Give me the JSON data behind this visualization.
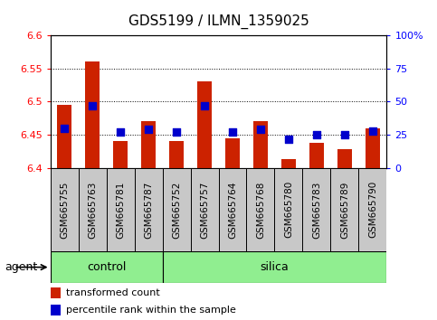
{
  "title": "GDS5199 / ILMN_1359025",
  "samples": [
    "GSM665755",
    "GSM665763",
    "GSM665781",
    "GSM665787",
    "GSM665752",
    "GSM665757",
    "GSM665764",
    "GSM665768",
    "GSM665780",
    "GSM665783",
    "GSM665789",
    "GSM665790"
  ],
  "transformed_count": [
    6.495,
    6.56,
    6.44,
    6.47,
    6.44,
    6.53,
    6.445,
    6.47,
    6.413,
    6.438,
    6.428,
    6.46
  ],
  "percentile_rank": [
    30,
    47,
    27,
    29,
    27,
    47,
    27,
    29,
    22,
    25,
    25,
    28
  ],
  "n_control": 4,
  "ylim_left": [
    6.4,
    6.6
  ],
  "ylim_right": [
    0,
    100
  ],
  "yticks_left": [
    6.4,
    6.45,
    6.5,
    6.55,
    6.6
  ],
  "yticks_right": [
    0,
    25,
    50,
    75,
    100
  ],
  "bar_color": "#cc2200",
  "dot_color": "#0000cc",
  "group_color": "#90ee90",
  "sample_bg_color": "#c8c8c8",
  "legend_tc": "transformed count",
  "legend_pr": "percentile rank within the sample",
  "agent_label": "agent",
  "control_label": "control",
  "silica_label": "silica"
}
